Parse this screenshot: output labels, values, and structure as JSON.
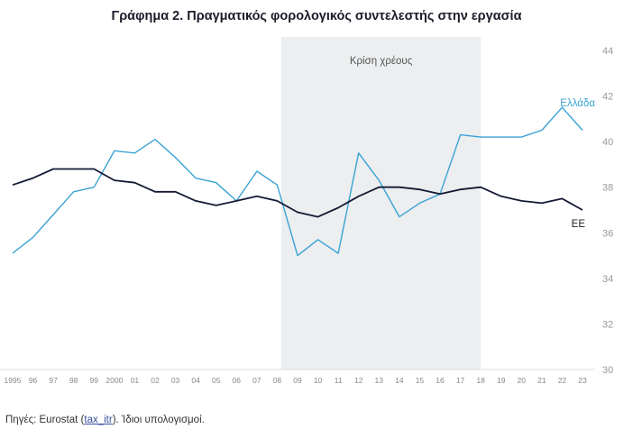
{
  "title": "Γράφημα 2. Πραγματικός φορολογικός συντελεστής στην εργασία",
  "source": {
    "prefix": "Πηγές: Eurostat (",
    "link": "tax_itr",
    "suffix": ").  Ίδιοι υπολογισμοί."
  },
  "chart_data": {
    "type": "line",
    "title": "Γράφημα 2. Πραγματικός φορολογικός συντελεστής στην εργασία",
    "x": [
      1995,
      1996,
      1997,
      1998,
      1999,
      2000,
      2001,
      2002,
      2003,
      2004,
      2005,
      2006,
      2007,
      2008,
      2009,
      2010,
      2011,
      2012,
      2013,
      2014,
      2015,
      2016,
      2017,
      2018,
      2019,
      2020,
      2021,
      2022,
      2023
    ],
    "x_tick_labels": [
      "1995",
      "96",
      "97",
      "98",
      "99",
      "2000",
      "01",
      "02",
      "03",
      "04",
      "05",
      "06",
      "07",
      "08",
      "09",
      "10",
      "11",
      "12",
      "13",
      "14",
      "15",
      "16",
      "17",
      "18",
      "19",
      "20",
      "21",
      "22",
      "23"
    ],
    "y_ticks": [
      30,
      32,
      34,
      36,
      38,
      40,
      42,
      44
    ],
    "ylim": [
      30,
      44
    ],
    "series": [
      {
        "name": "Ελλάδα",
        "color": "#3aa3d4",
        "values": [
          35.1,
          35.8,
          36.8,
          37.8,
          38.0,
          39.6,
          39.5,
          40.1,
          39.3,
          38.4,
          38.2,
          37.4,
          38.7,
          38.1,
          35.0,
          35.7,
          35.1,
          39.5,
          38.3,
          36.7,
          37.3,
          37.7,
          40.3,
          40.2,
          40.2,
          40.2,
          40.5,
          41.5,
          40.5
        ]
      },
      {
        "name": "ΕΕ",
        "color": "#141a33",
        "values": [
          38.1,
          38.4,
          38.8,
          38.8,
          38.8,
          38.3,
          38.2,
          37.8,
          37.8,
          37.4,
          37.2,
          37.4,
          37.6,
          37.4,
          36.9,
          36.7,
          37.1,
          37.6,
          38.0,
          38.0,
          37.9,
          37.7,
          37.9,
          38.0,
          37.6,
          37.4,
          37.3,
          37.5,
          37.0
        ]
      }
    ],
    "shaded_region": {
      "label": "Κρίση χρέους",
      "from": 2008.2,
      "to": 2018,
      "color": "#eceef0"
    },
    "grid": false,
    "legend": "inline-labels-right"
  }
}
